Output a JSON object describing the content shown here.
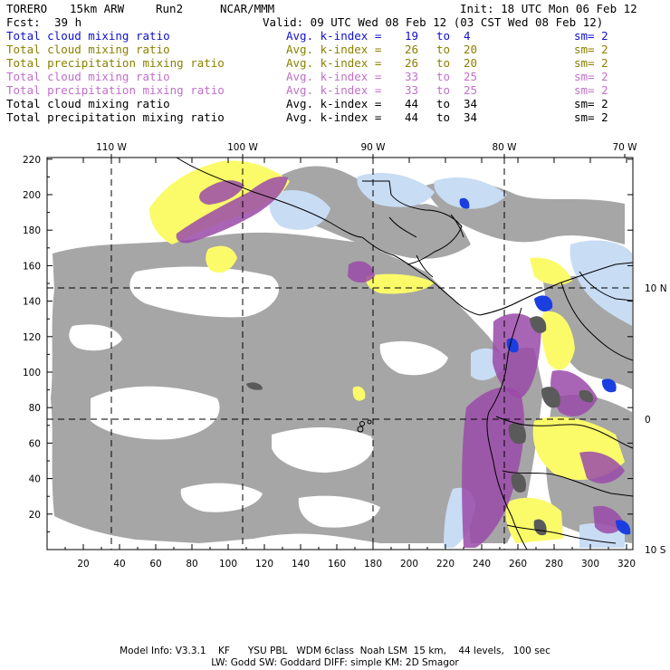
{
  "header": {
    "model": "TORERO",
    "resolution": "15km ARW",
    "run": "Run2",
    "org": "NCAR/MMM",
    "init": "Init: 18 UTC Mon 06 Feb 12",
    "fcst_label": "Fcst:",
    "fcst_value": "39 h",
    "valid": "Valid: 09 UTC Wed 08 Feb 12 (03 CST Wed 08 Feb 12)"
  },
  "legend": [
    {
      "field": "Total cloud mixing ratio",
      "idx": "Avg. k-index =",
      "k1": "19",
      "to": "to",
      "k2": "4",
      "sm": "sm= 2",
      "color": "#1010d0"
    },
    {
      "field": "Total cloud mixing ratio",
      "idx": "Avg. k-index =",
      "k1": "26",
      "to": "to",
      "k2": "20",
      "sm": "sm= 2",
      "color": "#8b8000"
    },
    {
      "field": "Total precipitation mixing ratio",
      "idx": "Avg. k-index =",
      "k1": "26",
      "to": "to",
      "k2": "20",
      "sm": "sm= 2",
      "color": "#8b8000"
    },
    {
      "field": "Total cloud mixing ratio",
      "idx": "Avg. k-index =",
      "k1": "33",
      "to": "to",
      "k2": "25",
      "sm": "sm= 2",
      "color": "#c070c8"
    },
    {
      "field": "Total precipitation mixing ratio",
      "idx": "Avg. k-index =",
      "k1": "33",
      "to": "to",
      "k2": "25",
      "sm": "sm= 2",
      "color": "#c070c8"
    },
    {
      "field": "Total cloud mixing ratio",
      "idx": "Avg. k-index =",
      "k1": "44",
      "to": "to",
      "k2": "34",
      "sm": "sm= 2",
      "color": "#000000"
    },
    {
      "field": "Total precipitation mixing ratio",
      "idx": "Avg. k-index =",
      "k1": "44",
      "to": "to",
      "k2": "34",
      "sm": "sm= 2",
      "color": "#000000"
    }
  ],
  "map": {
    "lon_labels": [
      "110 W",
      "100 W",
      "90 W",
      "80 W",
      "70 W"
    ],
    "lat_labels": [
      "10 N",
      "0",
      "10 S"
    ],
    "x_ticks": [
      "20",
      "40",
      "60",
      "80",
      "100",
      "120",
      "140",
      "160",
      "180",
      "200",
      "220",
      "240",
      "260",
      "280",
      "300",
      "320"
    ],
    "y_ticks": [
      "20",
      "40",
      "60",
      "80",
      "100",
      "120",
      "140",
      "160",
      "180",
      "200",
      "220"
    ],
    "colors": {
      "gray": "#a6a6a6",
      "dark_gray": "#5a5a5a",
      "light_blue": "#c8dcf4",
      "blue": "#1a3ee0",
      "yellow": "#fbfb6a",
      "purple": "#9a4aa8"
    }
  },
  "footer": {
    "line1": "Model Info: V3.3.1    KF      YSU PBL   WDM 6class  Noah LSM  15 km,    44 levels,   100 sec",
    "line2": "LW: Godd SW: Goddard DIFF: simple KM: 2D Smagor"
  }
}
